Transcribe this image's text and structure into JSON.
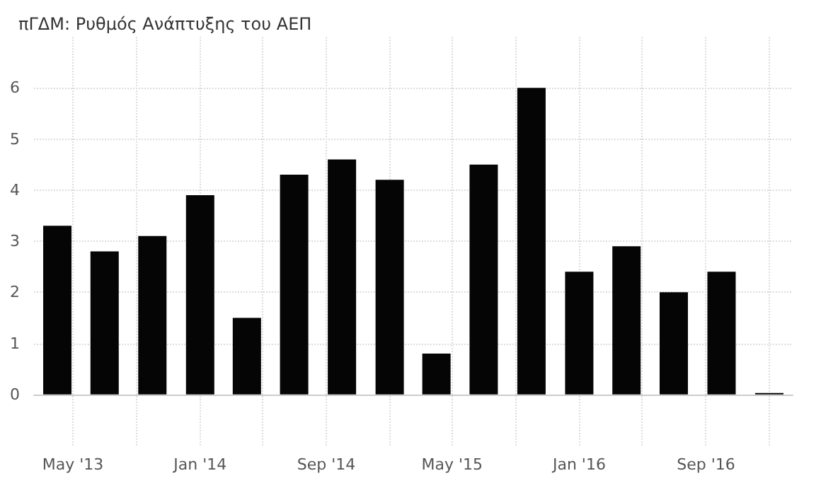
{
  "chart_data": {
    "type": "bar",
    "title": "πΓΔΜ: Ρυθμός Ανάπτυξης του ΑΕΠ",
    "x": [
      "2013-04-01",
      "2013-07-01",
      "2013-10-01",
      "2014-01-01",
      "2014-04-01",
      "2014-07-01",
      "2014-10-01",
      "2015-01-01",
      "2015-04-01",
      "2015-07-01",
      "2015-10-01",
      "2016-01-01",
      "2016-04-01",
      "2016-07-01",
      "2016-10-01",
      "2017-01-01"
    ],
    "values": [
      3.3,
      2.8,
      3.1,
      3.9,
      1.5,
      4.3,
      4.6,
      4.2,
      0.8,
      4.5,
      6.0,
      2.4,
      2.9,
      2.0,
      2.4,
      0.0
    ],
    "color": "#050505",
    "xlim": [
      "2013-02-15",
      "2017-02-15"
    ],
    "xticks": [
      {
        "value": "2013-05-01",
        "label": "May '13"
      },
      {
        "value": "2013-09-01",
        "label": null
      },
      {
        "value": "2014-01-01",
        "label": "Jan '14"
      },
      {
        "value": "2014-05-01",
        "label": null
      },
      {
        "value": "2014-09-01",
        "label": "Sep '14"
      },
      {
        "value": "2015-01-01",
        "label": null
      },
      {
        "value": "2015-05-01",
        "label": "May '15"
      },
      {
        "value": "2015-09-01",
        "label": null
      },
      {
        "value": "2016-01-01",
        "label": "Jan '16"
      },
      {
        "value": "2016-05-01",
        "label": null
      },
      {
        "value": "2016-09-01",
        "label": "Sep '16"
      },
      {
        "value": "2017-01-01",
        "label": null
      }
    ],
    "ylim": [
      -1,
      7
    ],
    "yticks": [
      0,
      1,
      2,
      3,
      4,
      5,
      6
    ],
    "grid": true
  }
}
